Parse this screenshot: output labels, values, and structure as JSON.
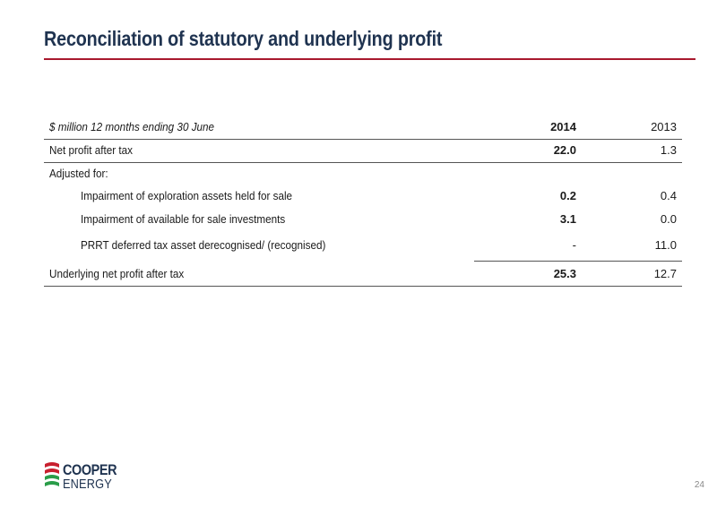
{
  "title": "Reconciliation of statutory and underlying profit",
  "table": {
    "header": {
      "label": "$ million 12 months ending 30 June",
      "col_2014": "2014",
      "col_2013": "2013"
    },
    "rows": [
      {
        "label": "Net profit after tax",
        "v2014": "22.0",
        "v2013": "1.3"
      },
      {
        "label": "Adjusted for:",
        "v2014": "",
        "v2013": ""
      },
      {
        "label": "Impairment of exploration assets held for sale",
        "v2014": "0.2",
        "v2013": "0.4"
      },
      {
        "label": "Impairment of available for sale investments",
        "v2014": "3.1",
        "v2013": "0.0"
      },
      {
        "label": "PRRT deferred tax asset derecognised/ (recognised)",
        "v2014": "-",
        "v2013": "11.0"
      },
      {
        "label": "Underlying net profit after tax",
        "v2014": "25.3",
        "v2013": "12.7"
      }
    ]
  },
  "logo": {
    "line1": "COOPER",
    "line2": "ENERGY",
    "colors": {
      "red": "#c8202f",
      "green": "#2a9d49",
      "navy": "#1f3350"
    }
  },
  "page_number": "24"
}
